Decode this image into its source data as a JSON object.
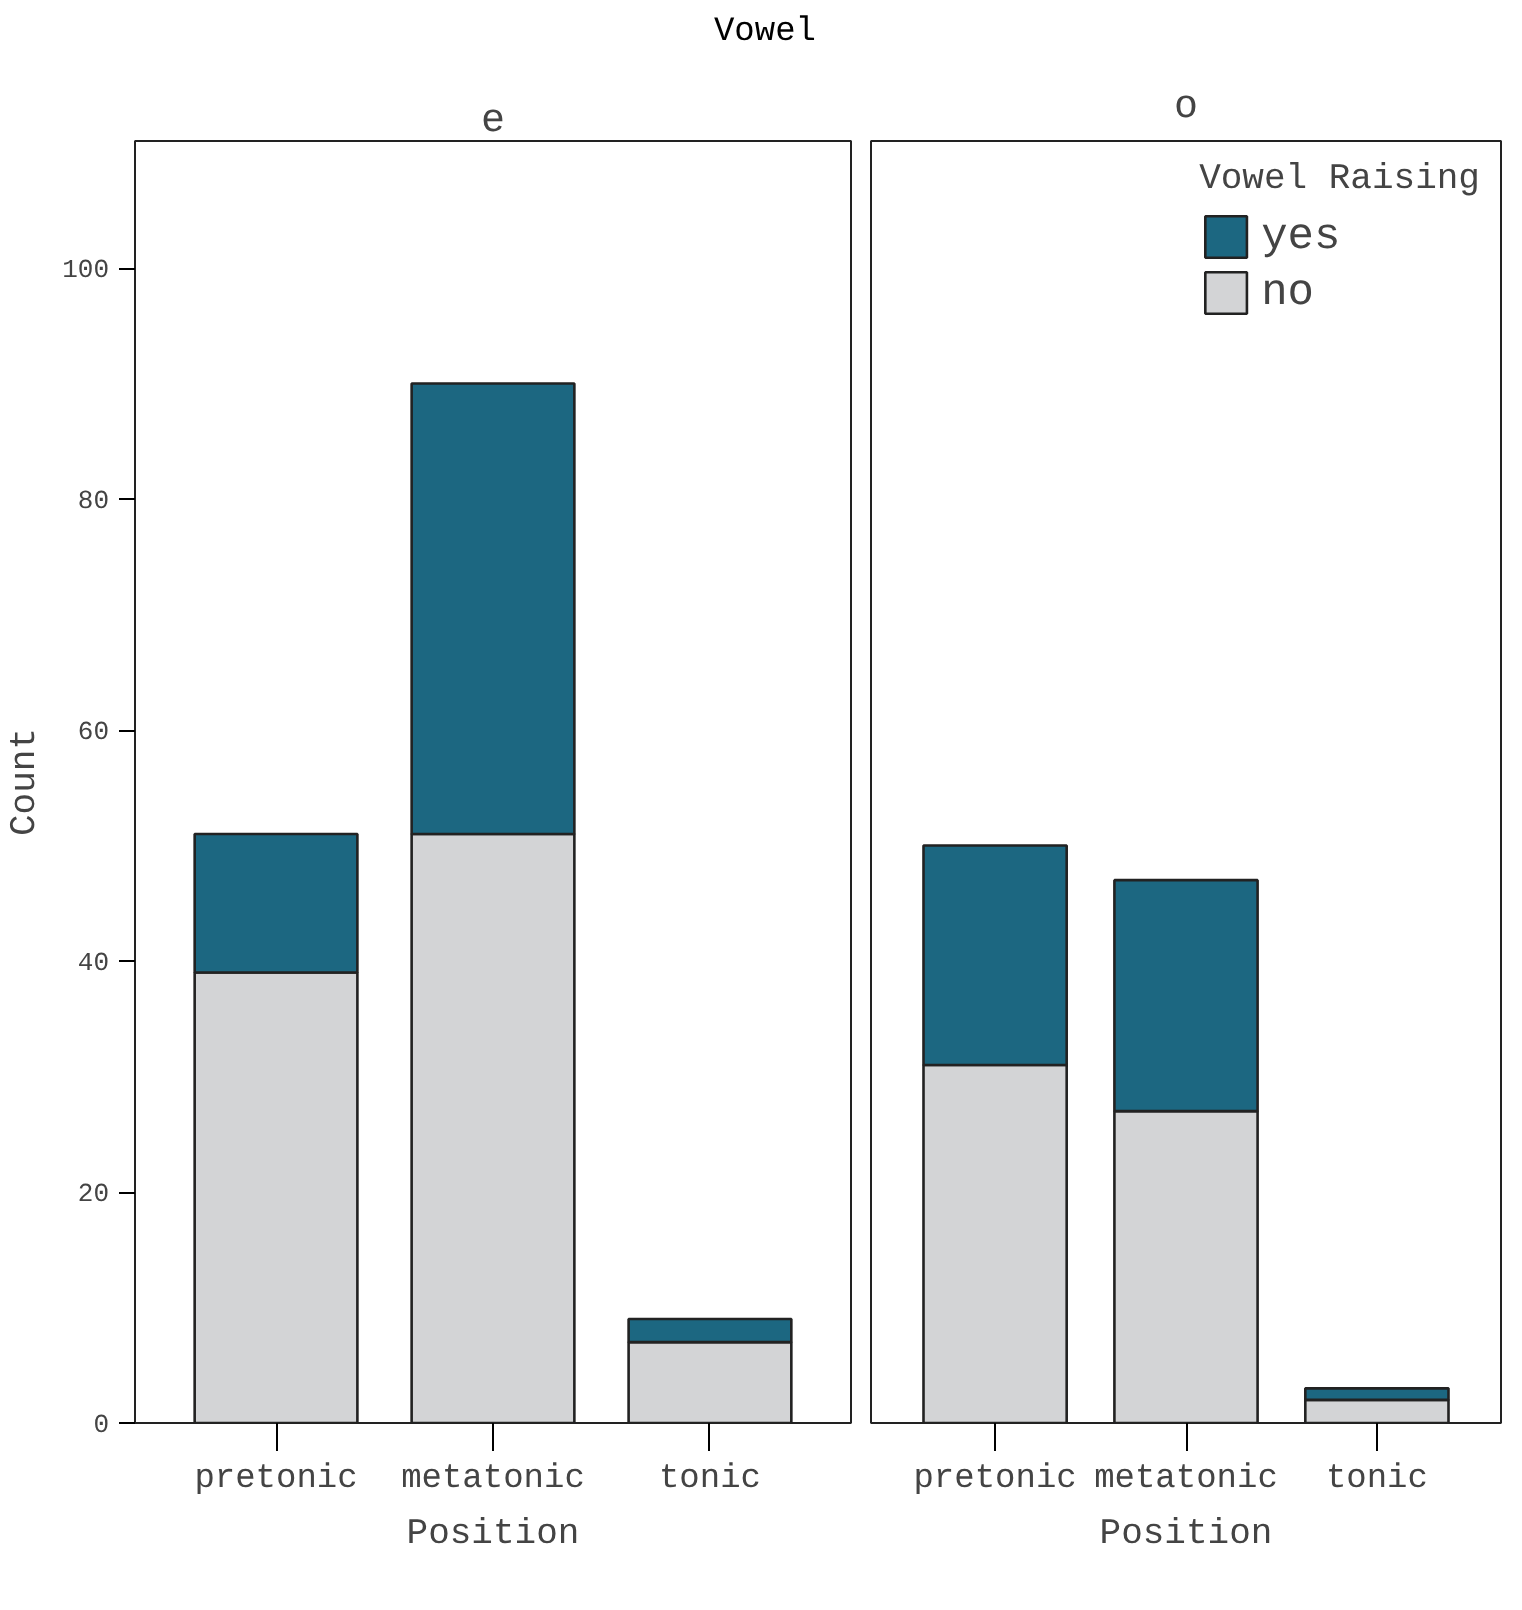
{
  "chart_data": [
    {
      "type": "bar",
      "title": "e",
      "annotations": [
        "Vowel"
      ],
      "categories": [
        "pretonic",
        "metatonic",
        "tonic"
      ],
      "stacked": true,
      "xlabel": "Position",
      "ylabel": "Count",
      "ylim": [
        0,
        111
      ],
      "yticks": [
        0,
        20,
        40,
        60,
        80,
        100
      ],
      "grid": false,
      "legend": false,
      "series": [
        {
          "color": "#d3d4d6",
          "values": [
            39,
            51,
            7
          ]
        },
        {
          "color": "#1c6781",
          "values": [
            12,
            39,
            2
          ]
        }
      ]
    },
    {
      "type": "bar",
      "title": "o",
      "categories": [
        "pretonic",
        "metatonic",
        "tonic"
      ],
      "stacked": true,
      "xlabel": "Position",
      "ylim": [
        0,
        111
      ],
      "tick_labels": "x",
      "grid": false,
      "legend": "top right",
      "legend_title": "Vowel Raising",
      "series": [
        {
          "name": "no",
          "color": "#d3d4d6",
          "values": [
            31,
            27,
            2
          ]
        },
        {
          "name": "yes",
          "color": "#1c6781",
          "values": [
            19,
            20,
            1
          ]
        }
      ]
    }
  ]
}
